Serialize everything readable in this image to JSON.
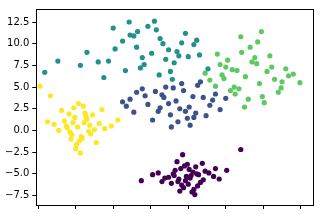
{
  "chart_data": {
    "type": "scatter",
    "xlim": [
      -12.2,
      17.3
    ],
    "xticks": [
      -12,
      -8,
      -4,
      0,
      4,
      8,
      12,
      16
    ],
    "ylim": [
      -8.6,
      14.0
    ],
    "yticks": [
      {
        "value": -7.5,
        "label": "−7.5"
      },
      {
        "value": -5,
        "label": "−5.0"
      },
      {
        "value": -2.5,
        "label": "−2.5"
      },
      {
        "value": 0,
        "label": "0.0"
      },
      {
        "value": 2.5,
        "label": "2.5"
      },
      {
        "value": 5,
        "label": "5.0"
      },
      {
        "value": 7.5,
        "label": "7.5"
      },
      {
        "value": 10,
        "label": "10.0"
      },
      {
        "value": 12.5,
        "label": "12.5"
      }
    ],
    "tick_labels": "y",
    "grid": false,
    "marker": "circle",
    "series": [
      {
        "color": "#440154",
        "x": [
          3.8,
          4.5,
          2.9,
          5.1,
          3.2,
          4.0,
          2.4,
          5.6,
          3.5,
          4.8,
          1.9,
          6.2,
          3.0,
          4.3,
          2.6,
          5.3,
          3.9,
          4.6,
          1.5,
          6.7,
          3.3,
          4.1,
          2.2,
          5.8,
          3.7,
          4.9,
          0.8,
          7.3,
          2.8,
          4.4,
          3.6,
          5.0,
          1.2,
          6.9,
          2.5,
          4.2,
          3.1,
          5.5,
          0.2,
          8.1,
          9.6,
          -1.0,
          3.4,
          4.7
        ],
        "values": [
          -5.3,
          -4.8,
          -5.9,
          -5.1,
          -4.4,
          -6.2,
          -5.0,
          -5.7,
          -6.6,
          -4.2,
          -5.4,
          -4.9,
          -5.6,
          -5.2,
          -4.6,
          -6.0,
          -3.9,
          -6.8,
          -5.5,
          -5.3,
          -6.3,
          -4.5,
          -6.1,
          -4.7,
          -5.8,
          -5.0,
          -4.9,
          -5.6,
          -3.6,
          -7.1,
          -4.1,
          -6.4,
          -5.9,
          -4.4,
          -5.2,
          -5.5,
          -7.0,
          -3.8,
          -5.1,
          -4.6,
          -2.2,
          -5.8,
          -2.8,
          -7.4
        ]
      },
      {
        "color": "#fde725",
        "x": [
          -7.8,
          -7.1,
          -8.6,
          -6.5,
          -9.2,
          -7.4,
          -8.1,
          -6.0,
          -8.9,
          -7.6,
          -5.5,
          -9.8,
          -7.0,
          -8.4,
          -6.8,
          -10.3,
          -7.9,
          -6.2,
          -8.7,
          -4.9,
          -7.3,
          -9.5,
          -6.6,
          -8.2,
          -11.0,
          -5.8,
          -7.7,
          -8.0,
          -4.2,
          -11.8,
          -6.9,
          -8.5,
          -7.2,
          -9.0,
          -3.5,
          -10.7,
          -6.4,
          -8.3,
          -7.5,
          -5.2
        ],
        "values": [
          0.4,
          0.9,
          -0.2,
          0.6,
          1.1,
          -0.7,
          1.5,
          0.1,
          0.3,
          -1.2,
          0.8,
          0.0,
          2.0,
          -0.5,
          1.3,
          0.7,
          -1.6,
          1.8,
          1.9,
          0.2,
          -0.9,
          2.3,
          -0.1,
          2.6,
          1.0,
          -1.4,
          3.1,
          -2.1,
          0.5,
          5.1,
          1.6,
          -1.0,
          2.8,
          0.5,
          1.2,
          4.0,
          -0.4,
          0.9,
          -2.6,
          2.4
        ]
      },
      {
        "color": "#3b528b",
        "x": [
          2.7,
          1.2,
          4.1,
          -0.3,
          3.5,
          5.6,
          0.8,
          2.1,
          6.3,
          -1.5,
          3.9,
          1.6,
          4.8,
          -2.2,
          2.4,
          6.9,
          0.2,
          3.1,
          5.0,
          -0.9,
          1.9,
          4.5,
          7.4,
          -1.8,
          2.9,
          0.5,
          5.9,
          3.3,
          -3.0,
          4.2,
          1.0,
          6.6,
          2.2,
          -0.6,
          3.7,
          5.3,
          8.0,
          1.4,
          -2.6,
          4.6
        ],
        "values": [
          3.4,
          4.1,
          2.7,
          3.0,
          4.6,
          3.8,
          2.2,
          1.8,
          2.9,
          4.4,
          1.4,
          5.0,
          2.0,
          3.6,
          4.9,
          4.2,
          1.2,
          2.5,
          5.2,
          4.8,
          3.1,
          3.9,
          2.4,
          2.1,
          1.0,
          4.5,
          1.7,
          5.4,
          3.3,
          0.6,
          2.6,
          3.5,
          0.4,
          4.0,
          2.2,
          5.6,
          3.7,
          3.8,
          2.8,
          1.5
        ]
      },
      {
        "color": "#21918c",
        "x": [
          0.1,
          -1.5,
          1.6,
          -3.0,
          2.8,
          -0.7,
          4.0,
          -2.2,
          1.0,
          -4.5,
          3.3,
          -1.1,
          0.6,
          5.2,
          -3.8,
          2.1,
          -0.3,
          -5.6,
          4.6,
          1.9,
          -2.3,
          -11.3,
          -9.9,
          -6.8,
          0.9,
          3.7,
          -1.8,
          6.1,
          -0.9,
          2.5,
          -4.0,
          1.3,
          -2.7,
          4.9,
          -7.5,
          0.4,
          3.0,
          -1.4,
          -5.0,
          2.3
        ],
        "values": [
          8.9,
          9.6,
          8.2,
          10.3,
          9.1,
          7.6,
          8.5,
          11.0,
          10.6,
          8.0,
          10.1,
          7.2,
          11.6,
          8.7,
          9.4,
          6.8,
          12.0,
          7.9,
          9.9,
          9.3,
          12.5,
          6.7,
          8.0,
          9.0,
          6.4,
          11.2,
          10.9,
          7.1,
          8.4,
          7.8,
          11.8,
          10.0,
          6.9,
          10.4,
          7.5,
          12.6,
          8.6,
          11.4,
          6.1,
          5.9
        ]
      },
      {
        "color": "#5ec962",
        "x": [
          10.1,
          8.7,
          11.6,
          9.4,
          12.4,
          7.8,
          10.8,
          13.2,
          9.0,
          11.1,
          6.9,
          12.9,
          8.2,
          10.4,
          14.0,
          7.4,
          11.9,
          9.7,
          15.2,
          8.5,
          10.6,
          13.6,
          6.3,
          11.4,
          9.2,
          14.7,
          7.1,
          12.1,
          15.9,
          8.0,
          10.0,
          12.7,
          5.8,
          11.3,
          9.6,
          13.9,
          8.9,
          14.4,
          7.6,
          11.8
        ],
        "values": [
          6.2,
          7.0,
          5.4,
          4.8,
          6.8,
          6.0,
          7.9,
          5.9,
          4.2,
          8.4,
          5.1,
          7.3,
          8.1,
          3.6,
          5.6,
          7.6,
          3.9,
          9.0,
          6.5,
          4.6,
          9.6,
          4.4,
          5.8,
          10.2,
          6.9,
          6.3,
          8.8,
          3.2,
          5.5,
          7.3,
          2.7,
          8.6,
          6.6,
          7.7,
          10.8,
          4.9,
          5.0,
          7.1,
          6.4,
          11.4
        ]
      }
    ]
  }
}
